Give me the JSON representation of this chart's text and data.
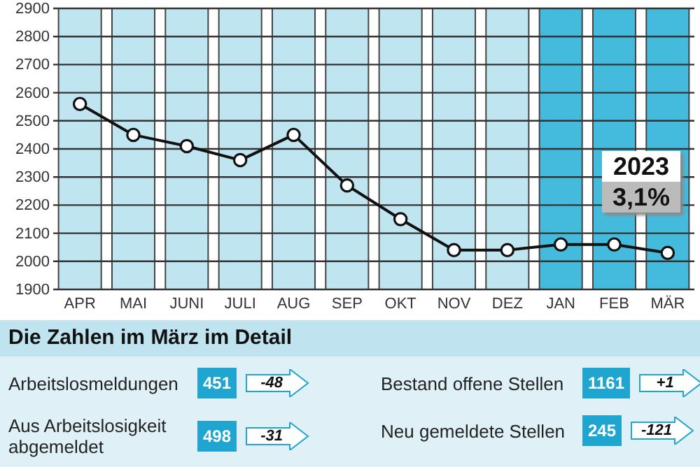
{
  "chart_data": [
    {
      "type": "line",
      "categories": [
        "APR",
        "MAI",
        "JUNI",
        "JULI",
        "AUG",
        "SEP",
        "OKT",
        "NOV",
        "DEZ",
        "JAN",
        "FEB",
        "MÄR"
      ],
      "series": [
        {
          "color": "#111111",
          "values": [
            2560,
            2450,
            2410,
            2360,
            2450,
            2270,
            2150,
            2040,
            2040,
            2060,
            2060,
            2030
          ]
        }
      ],
      "ylim": [
        1900,
        2900
      ],
      "yticks": [
        1900,
        2000,
        2100,
        2200,
        2300,
        2400,
        2500,
        2600,
        2700,
        2800,
        2900
      ],
      "grid": "y",
      "marker": "circle",
      "bands": [
        {
          "axis": "x",
          "from": "APR",
          "to": "APR",
          "color": "#bfe5f0"
        },
        {
          "axis": "x",
          "from": "MAI",
          "to": "MAI",
          "color": "#bfe5f0"
        },
        {
          "axis": "x",
          "from": "JUNI",
          "to": "JUNI",
          "color": "#bfe5f0"
        },
        {
          "axis": "x",
          "from": "JULI",
          "to": "JULI",
          "color": "#bfe5f0"
        },
        {
          "axis": "x",
          "from": "AUG",
          "to": "AUG",
          "color": "#bfe5f0"
        },
        {
          "axis": "x",
          "from": "SEP",
          "to": "SEP",
          "color": "#bfe5f0"
        },
        {
          "axis": "x",
          "from": "OKT",
          "to": "OKT",
          "color": "#bfe5f0"
        },
        {
          "axis": "x",
          "from": "NOV",
          "to": "NOV",
          "color": "#bfe5f0"
        },
        {
          "axis": "x",
          "from": "DEZ",
          "to": "DEZ",
          "color": "#bfe5f0"
        },
        {
          "axis": "x",
          "from": "JAN",
          "to": "JAN",
          "color": "#44bbdc"
        },
        {
          "axis": "x",
          "from": "FEB",
          "to": "FEB",
          "color": "#44bbdc"
        },
        {
          "axis": "x",
          "from": "MÄR",
          "to": "MÄR",
          "color": "#44bbdc"
        }
      ],
      "annotations": [
        "2023",
        "3,1%"
      ]
    },
    {
      "type": "other",
      "title": "Die Zahlen im März im Detail",
      "annotations": [
        "Arbeitslosmeldungen",
        "451",
        "-48",
        "Aus Arbeitslosigkeit abgemeldet",
        "498",
        "-31",
        "Bestand offene Stellen",
        "1161",
        "+1",
        "Neu gemeldete Stellen",
        "245",
        "-121"
      ]
    }
  ]
}
